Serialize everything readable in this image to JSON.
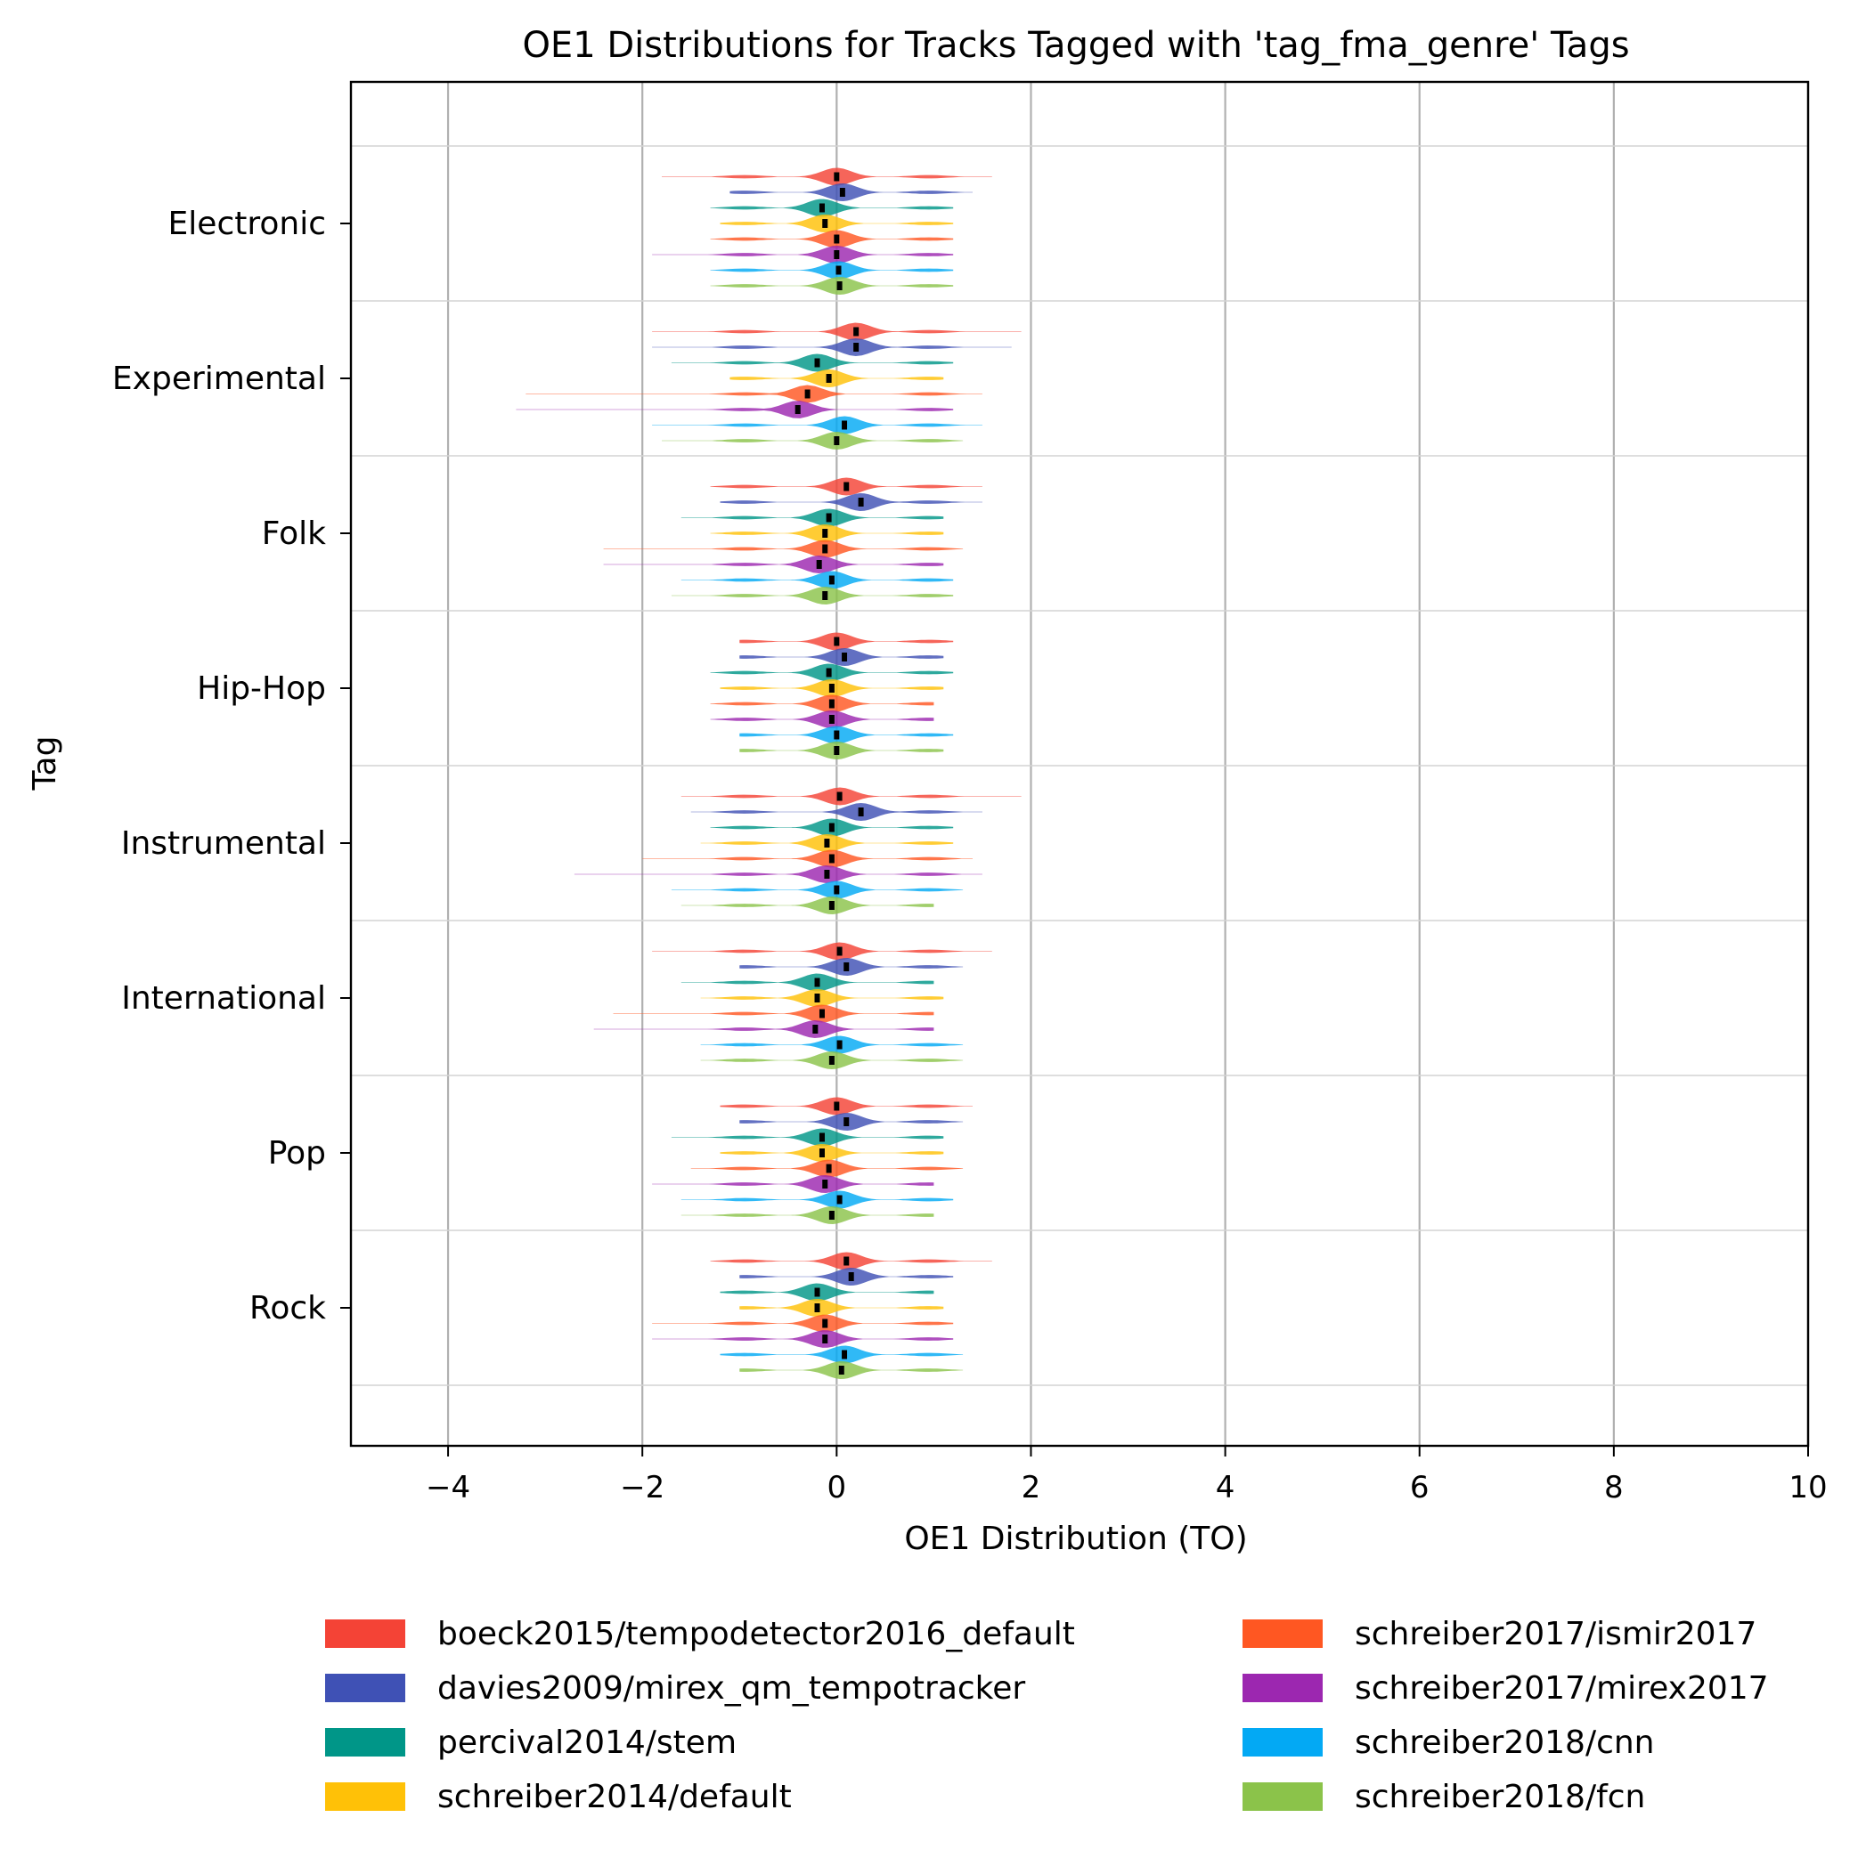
{
  "chart_data": {
    "type": "violin",
    "orientation": "horizontal",
    "title": "OE1 Distributions for Tracks Tagged with 'tag_fma_genre' Tags",
    "xlabel": "OE1 Distribution (TO)",
    "ylabel": "Tag",
    "xlim": [
      -5,
      10
    ],
    "xticks": [
      -4,
      -2,
      0,
      2,
      4,
      6,
      8,
      10
    ],
    "xtick_labels": [
      "−4",
      "−2",
      "0",
      "2",
      "4",
      "6",
      "8",
      "10"
    ],
    "categories": [
      "Electronic",
      "Experimental",
      "Folk",
      "Hip-Hop",
      "Instrumental",
      "International",
      "Pop",
      "Rock"
    ],
    "grid": true,
    "legend_position": "bottom",
    "series": [
      {
        "name": "boeck2015/tempodetector2016_default",
        "color": "#f44336",
        "medians": [
          0.0,
          0.2,
          0.1,
          0.0,
          0.03,
          0.03,
          0.0,
          0.1
        ],
        "min": [
          -1.8,
          -1.9,
          -1.3,
          -1.0,
          -1.6,
          -1.9,
          -1.2,
          -1.3
        ],
        "max": [
          1.6,
          1.9,
          1.5,
          1.2,
          1.9,
          1.6,
          1.4,
          1.6
        ]
      },
      {
        "name": "davies2009/mirex_qm_tempotracker",
        "color": "#3f51b5",
        "medians": [
          0.06,
          0.2,
          0.25,
          0.08,
          0.25,
          0.1,
          0.1,
          0.15
        ],
        "min": [
          -1.1,
          -1.9,
          -1.2,
          -1.0,
          -1.5,
          -1.0,
          -1.0,
          -1.0
        ],
        "max": [
          1.4,
          1.8,
          1.5,
          1.1,
          1.5,
          1.3,
          1.3,
          1.2
        ]
      },
      {
        "name": "percival2014/stem",
        "color": "#009688",
        "medians": [
          -0.15,
          -0.2,
          -0.08,
          -0.08,
          -0.05,
          -0.2,
          -0.15,
          -0.2
        ],
        "min": [
          -1.3,
          -1.7,
          -1.6,
          -1.3,
          -1.3,
          -1.6,
          -1.7,
          -1.2
        ],
        "max": [
          1.2,
          1.2,
          1.1,
          1.2,
          1.2,
          1.0,
          1.1,
          1.0
        ]
      },
      {
        "name": "schreiber2014/default",
        "color": "#ffc107",
        "medians": [
          -0.12,
          -0.08,
          -0.12,
          -0.05,
          -0.1,
          -0.2,
          -0.15,
          -0.2
        ],
        "min": [
          -1.2,
          -1.1,
          -1.3,
          -1.2,
          -1.4,
          -1.4,
          -1.2,
          -1.0
        ],
        "max": [
          1.2,
          1.1,
          1.1,
          1.1,
          1.2,
          1.1,
          1.1,
          1.1
        ]
      },
      {
        "name": "schreiber2017/ismir2017",
        "color": "#ff5722",
        "medians": [
          0.0,
          -0.3,
          -0.12,
          -0.05,
          -0.05,
          -0.15,
          -0.08,
          -0.12
        ],
        "min": [
          -1.3,
          -3.2,
          -2.4,
          -1.3,
          -2.0,
          -2.3,
          -1.5,
          -1.9
        ],
        "max": [
          1.2,
          1.5,
          1.3,
          1.0,
          1.4,
          1.0,
          1.3,
          1.2
        ]
      },
      {
        "name": "schreiber2017/mirex2017",
        "color": "#9c27b0",
        "medians": [
          0.0,
          -0.4,
          -0.18,
          -0.05,
          -0.1,
          -0.22,
          -0.12,
          -0.12
        ],
        "min": [
          -1.9,
          -3.3,
          -2.4,
          -1.3,
          -2.7,
          -2.5,
          -1.9,
          -1.9
        ],
        "max": [
          1.2,
          1.2,
          1.1,
          1.0,
          1.5,
          1.0,
          1.0,
          1.2
        ]
      },
      {
        "name": "schreiber2018/cnn",
        "color": "#03a9f4",
        "medians": [
          0.02,
          0.08,
          -0.05,
          0.0,
          0.0,
          0.03,
          0.03,
          0.08
        ],
        "min": [
          -1.3,
          -1.9,
          -1.6,
          -1.0,
          -1.7,
          -1.4,
          -1.6,
          -1.2
        ],
        "max": [
          1.2,
          1.5,
          1.2,
          1.2,
          1.3,
          1.3,
          1.2,
          1.3
        ]
      },
      {
        "name": "schreiber2018/fcn",
        "color": "#8bc34a",
        "medians": [
          0.03,
          0.0,
          -0.12,
          0.0,
          -0.05,
          -0.05,
          -0.05,
          0.05
        ],
        "min": [
          -1.3,
          -1.8,
          -1.7,
          -1.0,
          -1.6,
          -1.4,
          -1.6,
          -1.0
        ],
        "max": [
          1.2,
          1.3,
          1.2,
          1.1,
          1.0,
          1.3,
          1.0,
          1.3
        ]
      }
    ]
  }
}
